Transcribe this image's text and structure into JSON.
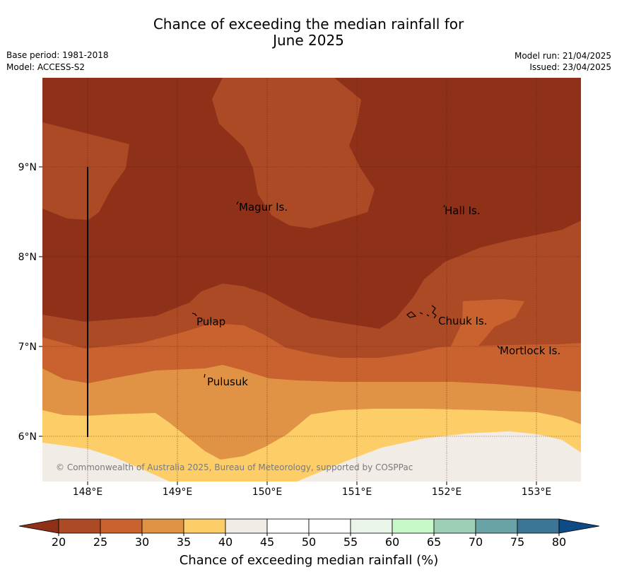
{
  "title": {
    "line1": "Chance of exceeding the median rainfall for",
    "line2": "June 2025"
  },
  "meta": {
    "base_period": "Base period: 1981-2018",
    "model": "Model: ACCESS-S2",
    "model_run": "Model run: 21/04/2025",
    "issued": "Issued: 23/04/2025"
  },
  "map": {
    "copyright": "© Commonwealth of Australia 2025, Bureau of Meteorology, supported by COSPPac",
    "lat_labels": [
      "9°N",
      "8°N",
      "7°N",
      "6°N"
    ],
    "lon_labels": [
      "148°E",
      "149°E",
      "150°E",
      "151°E",
      "152°E",
      "153°E"
    ],
    "places": {
      "magur": "Magur Is.",
      "hall": "Hall Is.",
      "pulap": "Pulap",
      "chuuk": "Chuuk Is.",
      "mortlock": "Mortlock Is.",
      "pulusuk": "Pulusuk"
    }
  },
  "colorbar": {
    "ticks": [
      "20",
      "25",
      "30",
      "35",
      "40",
      "45",
      "50",
      "55",
      "60",
      "65",
      "70",
      "75",
      "80"
    ],
    "label": "Chance of exceeding median rainfall (%)",
    "colors": {
      "below_20": "#8f3019",
      "c20_25": "#ad4a26",
      "c25_30": "#c9622f",
      "c30_35": "#e09345",
      "c35_40": "#fdcd68",
      "c40_45": "#f1ece6",
      "c45_50": "#ffffff",
      "c50_55": "#ffffff",
      "c55_60": "#eaf5ea",
      "c60_65": "#c8f7c8",
      "c65_70": "#9ccfb5",
      "c70_75": "#6aa3a6",
      "c75_80": "#3d7596",
      "above_80": "#0e4a83"
    }
  }
}
